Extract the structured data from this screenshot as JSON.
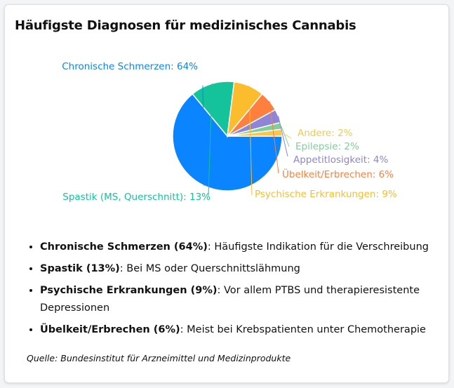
{
  "title": "Häufigste Diagnosen für medizinisches Cannabis",
  "chart_data": {
    "type": "pie",
    "title": "Häufigste Diagnosen für medizinisches Cannabis",
    "labels": [
      "Chronische Schmerzen: 64%",
      "Spastik (MS, Querschnitt): 13%",
      "Psychische Erkrankungen: 9%",
      "Übelkeit/Erbrechen: 6%",
      "Appetitlosigkeit: 4%",
      "Epilepsie: 2%",
      "Andere: 2%"
    ],
    "slices": [
      {
        "name": "Chronische Schmerzen",
        "value": 64,
        "color": "#0a84ff"
      },
      {
        "name": "Spastik (MS, Querschnitt)",
        "value": 13,
        "color": "#14c39a"
      },
      {
        "name": "Psychische Erkrankungen",
        "value": 9,
        "color": "#fbbc2e"
      },
      {
        "name": "Übelkeit/Erbrechen",
        "value": 6,
        "color": "#ff7f3f"
      },
      {
        "name": "Appetitlosigkeit",
        "value": 4,
        "color": "#8e84d8"
      },
      {
        "name": "Epilepsie",
        "value": 2,
        "color": "#7fcf9a"
      },
      {
        "name": "Andere",
        "value": 2,
        "color": "#f9c74f"
      }
    ]
  },
  "notes": [
    {
      "term": "Chronische Schmerzen (64%)",
      "text": ": Häufigste Indikation für die Verschreibung"
    },
    {
      "term": "Spastik (13%)",
      "text": ": Bei MS oder Querschnittslähmung"
    },
    {
      "term": "Psychische Erkrankungen (9%)",
      "text": ": Vor allem PTBS und therapieresistente Depressionen"
    },
    {
      "term": "Übelkeit/Erbrechen (6%)",
      "text": ": Meist bei Krebspatienten unter Chemotherapie"
    }
  ],
  "source": "Quelle: Bundesinstitut für Arzneimittel und Medizinprodukte"
}
